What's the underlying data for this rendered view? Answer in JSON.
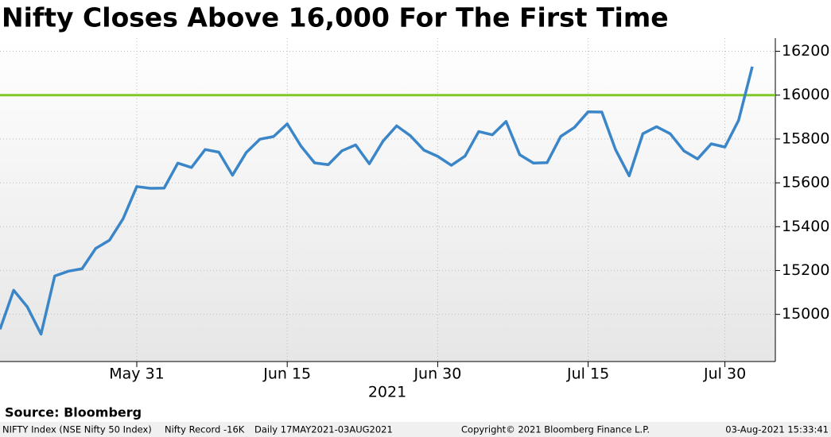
{
  "chart_data": {
    "type": "line",
    "title": "Nifty Closes Above 16,000 For The First Time",
    "x_label": "2021",
    "categories": [
      null,
      null,
      null,
      null,
      null,
      null,
      null,
      null,
      null,
      null,
      "May 31",
      null,
      null,
      null,
      null,
      null,
      null,
      null,
      null,
      null,
      null,
      "Jun 15",
      null,
      null,
      null,
      null,
      null,
      null,
      null,
      null,
      null,
      null,
      "Jun 30",
      null,
      null,
      null,
      null,
      null,
      null,
      null,
      null,
      null,
      null,
      "Jul 15",
      null,
      null,
      null,
      null,
      null,
      null,
      null,
      null,
      null,
      "Jul 30",
      null,
      null
    ],
    "series": [
      {
        "name": "NIFTY Index (NSE Nifty 50 Index)",
        "color": "#3a86c8",
        "values": [
          14932,
          15110,
          15034,
          14910,
          15175,
          15197,
          15208,
          15301,
          15338,
          15436,
          15583,
          15575,
          15576,
          15690,
          15670,
          15752,
          15740,
          15635,
          15738,
          15799,
          15811,
          15869,
          15768,
          15691,
          15683,
          15746,
          15773,
          15687,
          15790,
          15860,
          15815,
          15749,
          15721,
          15680,
          15722,
          15834,
          15819,
          15880,
          15728,
          15690,
          15692,
          15812,
          15853,
          15924,
          15923,
          15752,
          15632,
          15824,
          15856,
          15824,
          15746,
          15709,
          15778,
          15763,
          15885,
          16130
        ]
      }
    ],
    "reference_line": {
      "name": "Nifty Record -16K",
      "value": 16000,
      "color": "#80c828"
    },
    "ylim": [
      14785,
      16260
    ],
    "yticks": [
      15000,
      15200,
      15400,
      15600,
      15800,
      16000,
      16200
    ],
    "y_axis_side": "right",
    "grid": true,
    "source": "Source: Bloomberg",
    "footer": {
      "range": "Daily 17MAY2021-03AUG2021",
      "copyright": "Copyright© 2021 Bloomberg Finance L.P.",
      "timestamp": "03-Aug-2021 15:33:41"
    }
  }
}
